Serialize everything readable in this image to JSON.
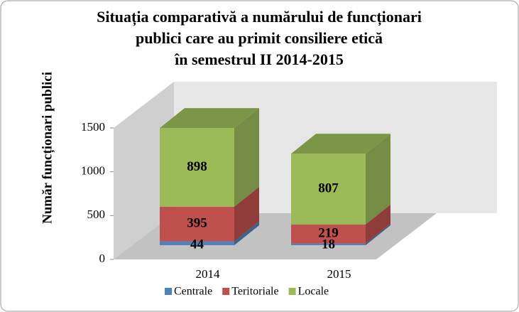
{
  "chart_data": {
    "type": "bar3d_stacked",
    "title": [
      "Situația comparativă  a numărului de funcționari",
      "publici care au primit consiliere etică",
      "în semestrul II 2014-2015"
    ],
    "y_label": "Număr funcționari publici",
    "categories": [
      "2014",
      "2015"
    ],
    "series": [
      {
        "name": "Centrale",
        "color": "#4f81bd",
        "values": [
          44,
          18
        ]
      },
      {
        "name": "Teritoriale",
        "color": "#c0504d",
        "values": [
          395,
          219
        ]
      },
      {
        "name": "Locale",
        "color": "#9bbb59",
        "values": [
          898,
          807
        ]
      }
    ],
    "ylim": [
      0,
      1500
    ],
    "yticks": [
      0,
      500,
      1000,
      1500
    ]
  }
}
